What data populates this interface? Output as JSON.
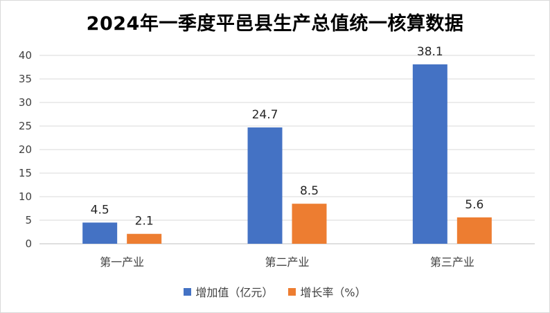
{
  "colors": {
    "series1": "#4472c4",
    "series2": "#ed7d31",
    "grid": "#d9d9d9",
    "axis": "#bfbfbf"
  },
  "chart_data": {
    "type": "bar",
    "title": "2024年一季度平邑县生产总值统一核算数据",
    "categories": [
      "第一产业",
      "第二产业",
      "第三产业"
    ],
    "series": [
      {
        "name": "增加值（亿元）",
        "values": [
          4.5,
          24.7,
          38.1
        ]
      },
      {
        "name": "增长率（%）",
        "values": [
          2.1,
          8.5,
          5.6
        ]
      }
    ],
    "data_labels": [
      [
        "4.5",
        "24.7",
        "38.1"
      ],
      [
        "2.1",
        "8.5",
        "5.6"
      ]
    ],
    "yticks": [
      "0",
      "5",
      "10",
      "15",
      "20",
      "25",
      "30",
      "35",
      "40"
    ],
    "ylim": [
      0,
      40
    ],
    "grid": true,
    "legend": "bottom",
    "xlabel": "",
    "ylabel": ""
  }
}
